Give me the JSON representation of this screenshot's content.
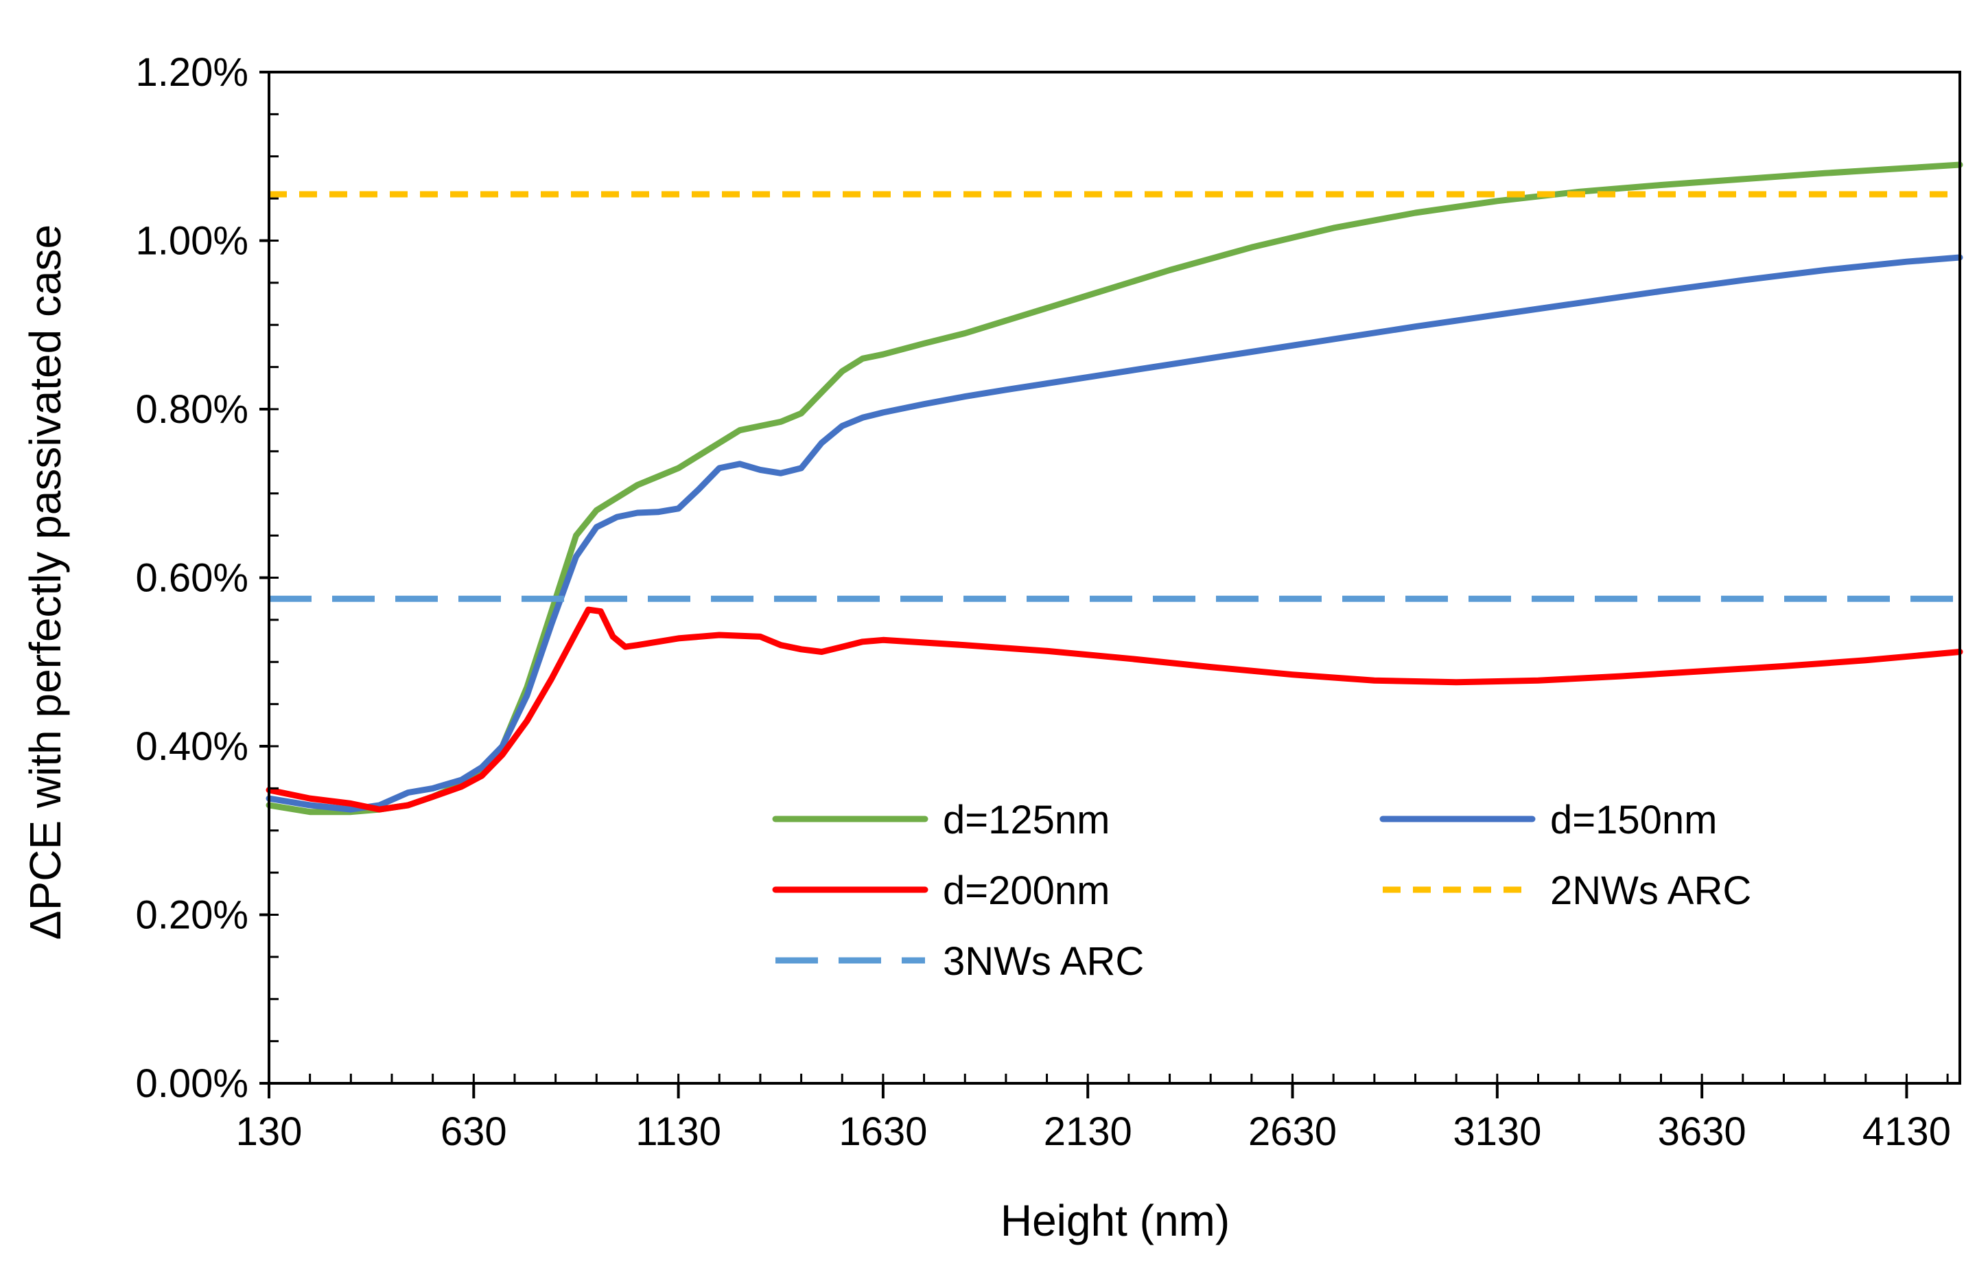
{
  "chart_data": {
    "type": "line",
    "title": "",
    "xlabel": "Height (nm)",
    "ylabel": "ΔPCE with perfectly passivated case",
    "xlim": [
      130,
      4260
    ],
    "ylim": [
      0.0,
      1.2
    ],
    "x_ticks": [
      130,
      630,
      1130,
      1630,
      2130,
      2630,
      3130,
      3630,
      4130
    ],
    "x_tick_labels": [
      "130",
      "630",
      "1130",
      "1630",
      "2130",
      "2630",
      "3130",
      "3630",
      "4130"
    ],
    "y_ticks": [
      0.0,
      0.2,
      0.4,
      0.6,
      0.8,
      1.0,
      1.2
    ],
    "y_tick_labels": [
      "0.00%",
      "0.20%",
      "0.40%",
      "0.60%",
      "0.80%",
      "1.00%",
      "1.20%"
    ],
    "y_unit": "percent",
    "grid": false,
    "legend_position": "bottom-center",
    "series": [
      {
        "name": "d=125nm",
        "color": "#70ad47",
        "style": "solid",
        "x": [
          130,
          230,
          330,
          400,
          470,
          530,
          600,
          650,
          700,
          760,
          820,
          880,
          930,
          980,
          1030,
          1080,
          1130,
          1180,
          1230,
          1280,
          1330,
          1380,
          1430,
          1480,
          1530,
          1580,
          1630,
          1730,
          1830,
          1930,
          2130,
          2330,
          2530,
          2730,
          2930,
          3130,
          3330,
          3530,
          3730,
          3930,
          4130,
          4260
        ],
        "values": [
          0.33,
          0.322,
          0.322,
          0.325,
          0.33,
          0.34,
          0.355,
          0.37,
          0.4,
          0.47,
          0.56,
          0.65,
          0.68,
          0.695,
          0.71,
          0.72,
          0.73,
          0.745,
          0.76,
          0.775,
          0.78,
          0.785,
          0.795,
          0.82,
          0.845,
          0.86,
          0.865,
          0.878,
          0.89,
          0.905,
          0.935,
          0.965,
          0.992,
          1.015,
          1.033,
          1.047,
          1.058,
          1.066,
          1.073,
          1.08,
          1.086,
          1.09
        ]
      },
      {
        "name": "d=150nm",
        "color": "#4472c4",
        "style": "solid",
        "x": [
          130,
          230,
          330,
          400,
          470,
          530,
          600,
          650,
          700,
          760,
          820,
          880,
          930,
          980,
          1030,
          1080,
          1130,
          1180,
          1230,
          1280,
          1330,
          1380,
          1430,
          1480,
          1530,
          1580,
          1630,
          1730,
          1830,
          1930,
          2130,
          2330,
          2530,
          2730,
          2930,
          3130,
          3330,
          3530,
          3730,
          3930,
          4130,
          4260
        ],
        "values": [
          0.338,
          0.33,
          0.325,
          0.33,
          0.345,
          0.35,
          0.36,
          0.375,
          0.4,
          0.46,
          0.545,
          0.625,
          0.66,
          0.672,
          0.677,
          0.678,
          0.682,
          0.705,
          0.73,
          0.735,
          0.728,
          0.724,
          0.73,
          0.76,
          0.78,
          0.79,
          0.796,
          0.806,
          0.815,
          0.823,
          0.838,
          0.853,
          0.868,
          0.883,
          0.898,
          0.912,
          0.926,
          0.94,
          0.953,
          0.965,
          0.975,
          0.98
        ]
      },
      {
        "name": "d=200nm",
        "color": "#ff0000",
        "style": "solid",
        "x": [
          130,
          230,
          330,
          400,
          470,
          530,
          600,
          650,
          700,
          760,
          820,
          880,
          910,
          940,
          970,
          1000,
          1030,
          1080,
          1130,
          1230,
          1330,
          1380,
          1430,
          1480,
          1530,
          1580,
          1630,
          1830,
          2030,
          2230,
          2430,
          2630,
          2830,
          3030,
          3230,
          3430,
          3630,
          3830,
          4030,
          4260
        ],
        "values": [
          0.348,
          0.338,
          0.332,
          0.325,
          0.33,
          0.34,
          0.352,
          0.365,
          0.39,
          0.43,
          0.48,
          0.535,
          0.562,
          0.56,
          0.53,
          0.518,
          0.52,
          0.524,
          0.528,
          0.532,
          0.53,
          0.52,
          0.515,
          0.512,
          0.518,
          0.524,
          0.526,
          0.52,
          0.513,
          0.504,
          0.494,
          0.485,
          0.478,
          0.476,
          0.478,
          0.483,
          0.489,
          0.495,
          0.502,
          0.512
        ]
      },
      {
        "name": "2NWs ARC",
        "color": "#ffc000",
        "style": "short-dash",
        "x": [
          130,
          4260
        ],
        "values": [
          1.055,
          1.055
        ]
      },
      {
        "name": "3NWs ARC",
        "color": "#5b9bd5",
        "style": "long-dash",
        "x": [
          130,
          4260
        ],
        "values": [
          0.575,
          0.575
        ]
      }
    ]
  }
}
